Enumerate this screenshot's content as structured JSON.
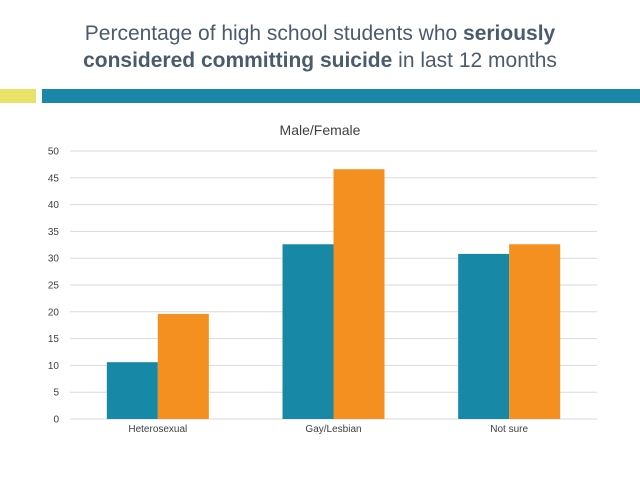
{
  "slide": {
    "title_part1": "Percentage of high school students who ",
    "title_bold1": "seriously",
    "title_bold2": "considered committing suicide",
    "title_part2": " in last 12 months"
  },
  "colors": {
    "male": "#1788a5",
    "female": "#f39020",
    "accent_yellow": "#e9e36a",
    "accent_teal": "#1a86a8",
    "grid": "#d9d9d9"
  },
  "chart_data": {
    "type": "bar",
    "title": "Male/Female",
    "categories": [
      "Heterosexual",
      "Gay/Lesbian",
      "Not sure"
    ],
    "series": [
      {
        "name": "Male",
        "values": [
          10.6,
          32.6,
          30.8
        ]
      },
      {
        "name": "Female",
        "values": [
          19.6,
          46.6,
          32.6
        ]
      }
    ],
    "ylim": [
      0,
      50
    ],
    "yticks": [
      0,
      5,
      10,
      15,
      20,
      25,
      30,
      35,
      40,
      45,
      50
    ],
    "grid": true,
    "xlabel": "",
    "ylabel": ""
  }
}
